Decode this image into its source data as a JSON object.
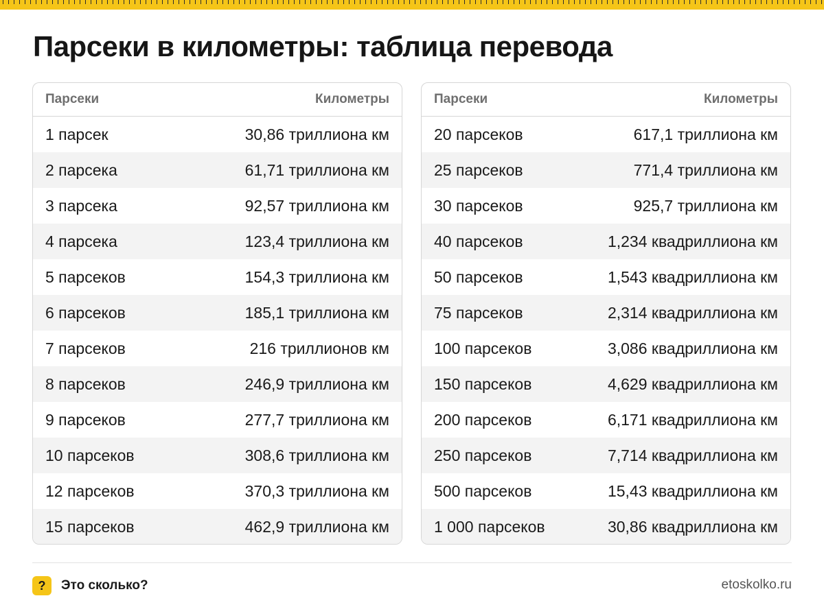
{
  "title": "Парсеки в километры: таблица перевода",
  "left_table": {
    "header": {
      "col1": "Парсеки",
      "col2": "Километры"
    },
    "rows": [
      {
        "pc": "1 парсек",
        "km": "30,86 триллиона км"
      },
      {
        "pc": "2 парсека",
        "km": "61,71 триллиона км"
      },
      {
        "pc": "3 парсека",
        "km": "92,57 триллиона км"
      },
      {
        "pc": "4 парсека",
        "km": "123,4 триллиона км"
      },
      {
        "pc": "5 парсеков",
        "km": "154,3 триллиона км"
      },
      {
        "pc": "6 парсеков",
        "km": "185,1 триллиона км"
      },
      {
        "pc": "7 парсеков",
        "km": "216 триллионов км"
      },
      {
        "pc": "8 парсеков",
        "km": "246,9 триллиона км"
      },
      {
        "pc": "9 парсеков",
        "km": "277,7 триллиона км"
      },
      {
        "pc": "10 парсеков",
        "km": "308,6 триллиона км"
      },
      {
        "pc": "12 парсеков",
        "km": "370,3 триллиона км"
      },
      {
        "pc": "15 парсеков",
        "km": "462,9 триллиона км"
      }
    ]
  },
  "right_table": {
    "header": {
      "col1": "Парсеки",
      "col2": "Километры"
    },
    "rows": [
      {
        "pc": "20 парсеков",
        "km": "617,1 триллиона км"
      },
      {
        "pc": "25 парсеков",
        "km": "771,4 триллиона км"
      },
      {
        "pc": "30 парсеков",
        "km": "925,7 триллиона км"
      },
      {
        "pc": "40 парсеков",
        "km": "1,234 квадриллиона км"
      },
      {
        "pc": "50 парсеков",
        "km": "1,543 квадриллиона км"
      },
      {
        "pc": "75 парсеков",
        "km": "2,314 квадриллиона км"
      },
      {
        "pc": "100 парсеков",
        "km": "3,086 квадриллиона км"
      },
      {
        "pc": "150 парсеков",
        "km": "4,629 квадриллиона км"
      },
      {
        "pc": "200 парсеков",
        "km": "6,171 квадриллиона км"
      },
      {
        "pc": "250 парсеков",
        "km": "7,714 квадриллиона км"
      },
      {
        "pc": "500 парсеков",
        "km": "15,43 квадриллиона км"
      },
      {
        "pc": "1 000 парсеков",
        "km": "30,86 квадриллиона км"
      }
    ]
  },
  "footer": {
    "badge": "?",
    "brand": "Это сколько?",
    "site": "etoskolko.ru"
  },
  "colors": {
    "accent": "#f5c518",
    "row_alt": "#f3f3f3",
    "border": "#d6d6d6",
    "header_text": "#6f6f6f"
  },
  "icons": {
    "ruler": "ruler-strip",
    "badge": "question-badge-icon"
  }
}
